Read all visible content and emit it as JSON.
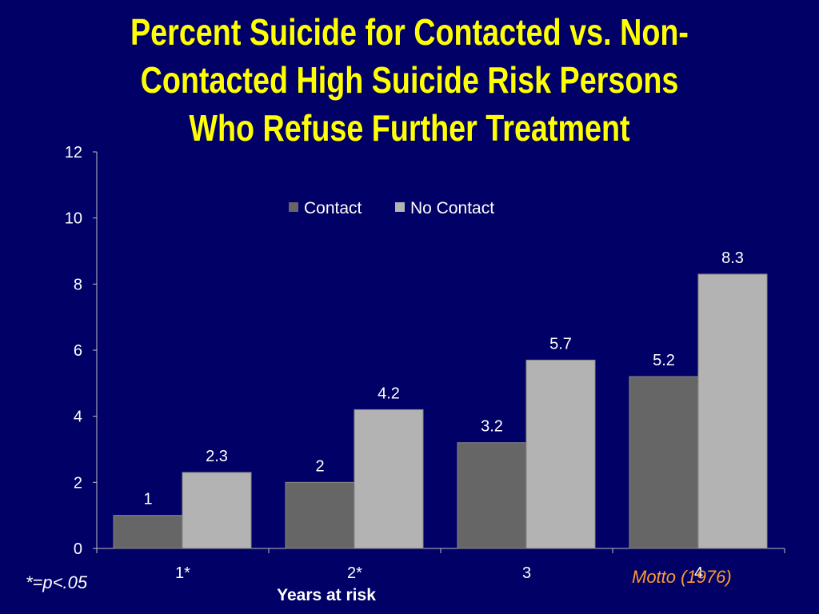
{
  "slide": {
    "title_lines": [
      "Percent Suicide for Contacted vs. Non-",
      "Contacted High Suicide Risk Persons",
      "Who Refuse Further Treatment"
    ],
    "footnote": "*=p<.05",
    "citation": "Motto (1976)"
  },
  "colors": {
    "background": "#000066",
    "title": "#FFFF00",
    "contact": "#666666",
    "no_contact": "#B3B3B3",
    "axis_text": "#FFFFFF",
    "citation": "#FF9933"
  },
  "chart_data": {
    "type": "bar",
    "title": "",
    "xlabel": "Years at risk",
    "ylabel": "",
    "categories": [
      "1*",
      "2*",
      "3",
      "4"
    ],
    "series": [
      {
        "name": "Contact",
        "values": [
          1,
          2,
          3.2,
          5.2
        ]
      },
      {
        "name": "No Contact",
        "values": [
          2.3,
          4.2,
          5.7,
          8.3
        ]
      }
    ],
    "data_labels": [
      [
        "1",
        "2",
        "3.2",
        "5.2"
      ],
      [
        "2.3",
        "4.2",
        "5.7",
        "8.3"
      ]
    ],
    "ylim": [
      0,
      12
    ],
    "yticks": [
      0,
      2,
      4,
      6,
      8,
      10,
      12
    ],
    "grid": false,
    "legend_position": "top-center"
  }
}
